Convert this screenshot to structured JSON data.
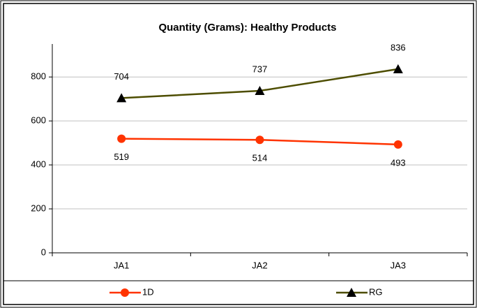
{
  "chart_data": {
    "type": "line",
    "title": "Quantity (Grams): Healthy Products",
    "categories": [
      "JA1",
      "JA2",
      "JA3"
    ],
    "series": [
      {
        "name": "1D",
        "color": "#ff3300",
        "marker": "circle",
        "values": [
          519,
          514,
          493
        ]
      },
      {
        "name": "RG",
        "color": "#4d4d00",
        "marker": "triangle",
        "values": [
          704,
          737,
          836
        ]
      }
    ],
    "ylim": [
      0,
      950
    ],
    "yticks": [
      0,
      200,
      400,
      600,
      800
    ],
    "grid": true,
    "legend": "bottom"
  }
}
